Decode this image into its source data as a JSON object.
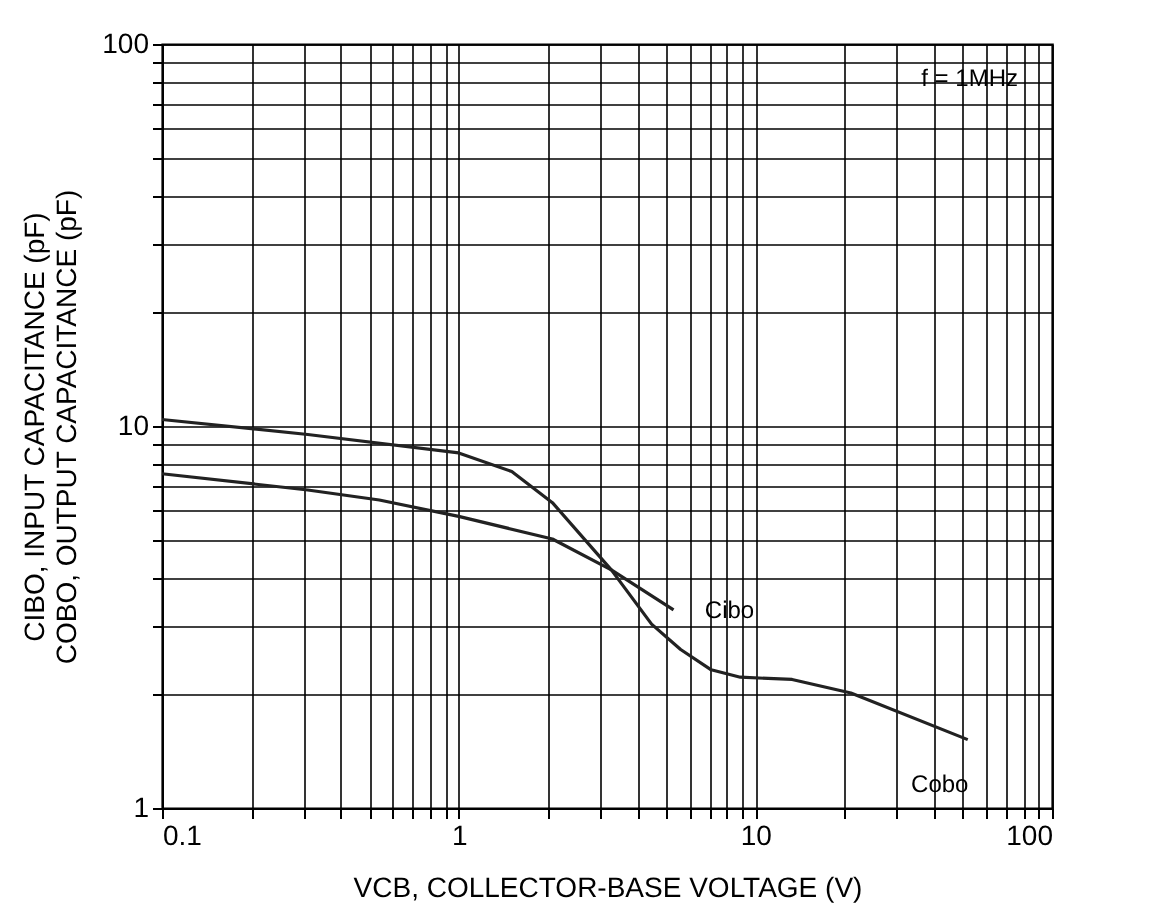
{
  "chart_data": {
    "type": "line",
    "xlabel": "VCB, COLLECTOR-BASE VOLTAGE (V)",
    "ylabel": "CIBO, INPUT CAPACITANCE (pF)\nCOBO, OUTPUT CAPACITANCE (pF)",
    "log": "xy",
    "grid": true,
    "legend": false,
    "marker": "none",
    "line_style": "solid",
    "xlim": [
      0.1,
      100
    ],
    "ylim": [
      1,
      100
    ],
    "xticks": [
      0.1,
      {
        "value": 0.2,
        "label": null
      },
      {
        "value": 0.3,
        "label": null
      },
      {
        "value": 0.4,
        "label": null
      },
      {
        "value": 0.5,
        "label": null
      },
      {
        "value": 0.6,
        "label": null
      },
      {
        "value": 0.7,
        "label": null
      },
      {
        "value": 0.8,
        "label": null
      },
      {
        "value": 0.9,
        "label": null
      },
      1,
      {
        "value": 2,
        "label": null
      },
      {
        "value": 3,
        "label": null
      },
      {
        "value": 4,
        "label": null
      },
      {
        "value": 5,
        "label": null
      },
      {
        "value": 6,
        "label": null
      },
      {
        "value": 7,
        "label": null
      },
      {
        "value": 8,
        "label": null
      },
      {
        "value": 9,
        "label": null
      },
      10,
      {
        "value": 20,
        "label": null
      },
      {
        "value": 30,
        "label": null
      },
      {
        "value": 40,
        "label": null
      },
      {
        "value": 50,
        "label": null
      },
      {
        "value": 60,
        "label": null
      },
      {
        "value": 70,
        "label": null
      },
      {
        "value": 80,
        "label": null
      },
      {
        "value": 90,
        "label": null
      },
      100
    ],
    "yticks": [
      1,
      {
        "value": 2,
        "label": null
      },
      {
        "value": 3,
        "label": null
      },
      {
        "value": 4,
        "label": null
      },
      {
        "value": 5,
        "label": null
      },
      {
        "value": 6,
        "label": null
      },
      {
        "value": 7,
        "label": null
      },
      {
        "value": 8,
        "label": null
      },
      {
        "value": 9,
        "label": null
      },
      10,
      {
        "value": 20,
        "label": null
      },
      {
        "value": 30,
        "label": null
      },
      {
        "value": 40,
        "label": null
      },
      {
        "value": 50,
        "label": null
      },
      {
        "value": 60,
        "label": null
      },
      {
        "value": 70,
        "label": null
      },
      {
        "value": 80,
        "label": null
      },
      {
        "value": 90,
        "label": null
      },
      100
    ],
    "series": [
      {
        "name": "Cibo",
        "color": "#222222",
        "x": [
          0.1,
          0.31,
          0.54,
          1,
          2.07,
          3.27,
          5.3
        ],
        "values": [
          7.5,
          6.8,
          6.4,
          5.8,
          5.06,
          4.2,
          3.3
        ]
      },
      {
        "name": "Cobo",
        "color": "#222222",
        "x": [
          0.1,
          0.31,
          1,
          1.51,
          2.07,
          3.27,
          4.47,
          5.6,
          7.1,
          8.9,
          13.3,
          21,
          52
        ],
        "values": [
          10.4,
          9.5,
          8.5,
          7.6,
          6.3,
          4.2,
          3.03,
          2.6,
          2.3,
          2.2,
          2.17,
          2.0,
          1.51
        ]
      }
    ],
    "annotations": [
      "f = 1MHz"
    ]
  }
}
